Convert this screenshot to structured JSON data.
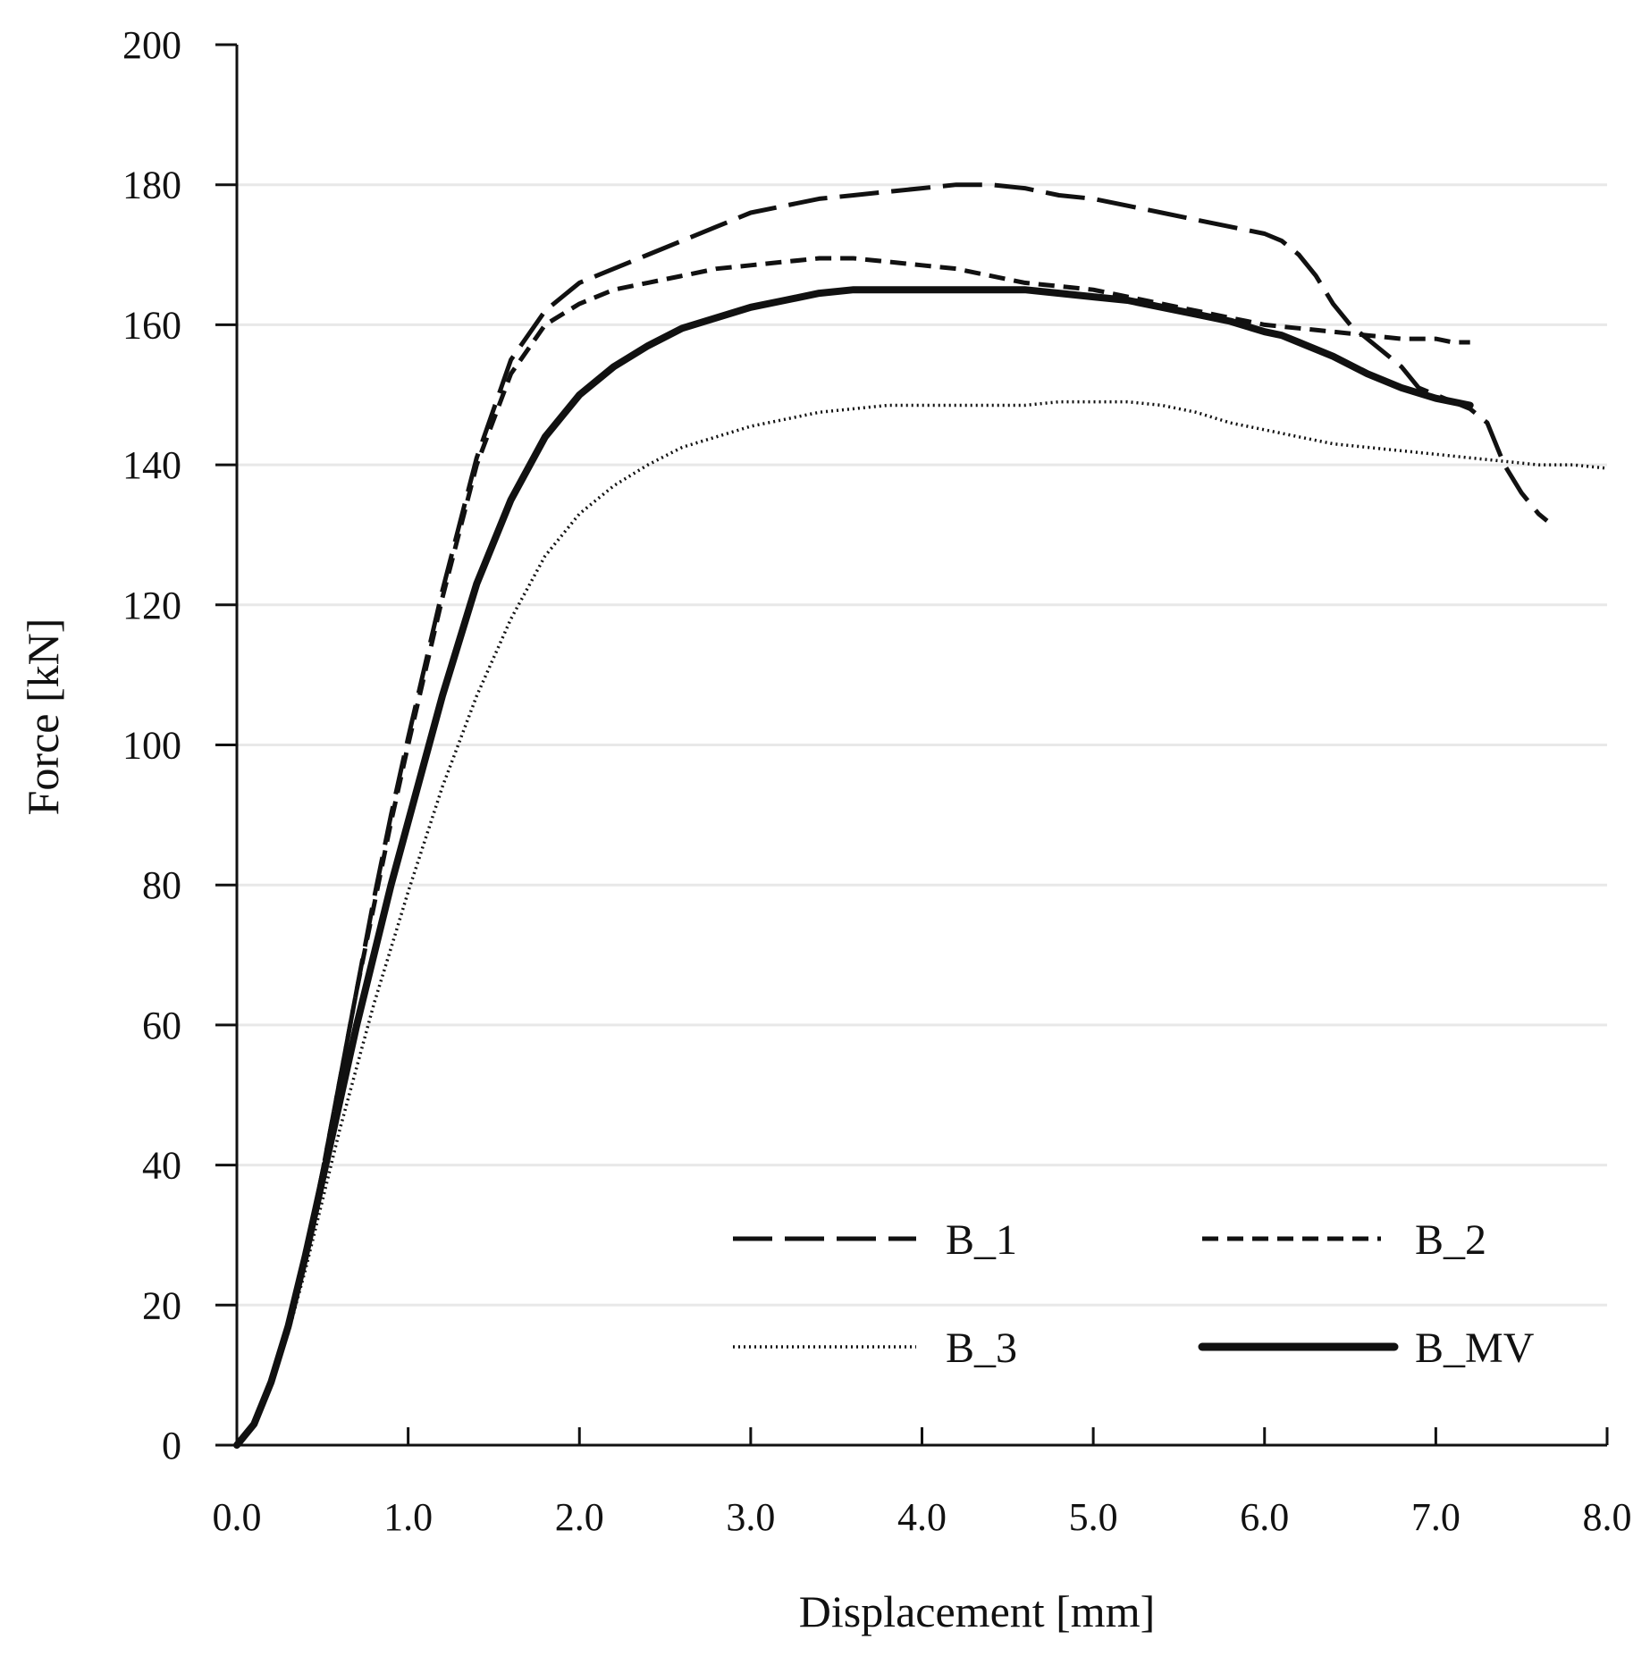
{
  "chart_data": {
    "type": "line",
    "title": "",
    "xlabel": "Displacement [mm]",
    "ylabel": "Force [kN]",
    "xlim": [
      0,
      8
    ],
    "ylim": [
      0,
      200
    ],
    "x_ticks": [
      0,
      1,
      2,
      3,
      4,
      5,
      6,
      7,
      8
    ],
    "x_tick_labels": [
      "0.0",
      "1.0",
      "2.0",
      "3.0",
      "4.0",
      "5.0",
      "6.0",
      "7.0",
      "8.0"
    ],
    "y_ticks": [
      0,
      20,
      40,
      60,
      80,
      100,
      120,
      140,
      160,
      180,
      200
    ],
    "y_tick_labels": [
      "0",
      "20",
      "40",
      "60",
      "80",
      "100",
      "120",
      "140",
      "160",
      "180",
      "200"
    ],
    "grid": "horizontal",
    "legend_position": "bottom-right",
    "series": [
      {
        "name": "B_1",
        "style": "long-dash",
        "color": "#111111",
        "x": [
          0,
          0.1,
          0.2,
          0.3,
          0.4,
          0.5,
          0.6,
          0.7,
          0.8,
          0.9,
          1.0,
          1.2,
          1.4,
          1.6,
          1.8,
          2.0,
          2.2,
          2.4,
          2.6,
          2.8,
          3.0,
          3.2,
          3.4,
          3.6,
          3.8,
          4.0,
          4.2,
          4.4,
          4.6,
          4.8,
          5.0,
          5.2,
          5.4,
          5.6,
          5.8,
          6.0,
          6.1,
          6.2,
          6.3,
          6.4,
          6.5,
          6.6,
          6.7,
          6.8,
          6.9,
          7.0,
          7.1,
          7.2,
          7.3,
          7.4,
          7.5,
          7.6,
          7.65
        ],
        "y": [
          0,
          3,
          9,
          17,
          27,
          39,
          52,
          65,
          78,
          90,
          101,
          122,
          141,
          155,
          162,
          166,
          168,
          170,
          172,
          174,
          176,
          177,
          178,
          178.5,
          179,
          179.5,
          180,
          180,
          179.5,
          178.5,
          178,
          177,
          176,
          175,
          174,
          173,
          172,
          170,
          167,
          163,
          160,
          158,
          156,
          154,
          151,
          150,
          149,
          148,
          146,
          140,
          136,
          133,
          132
        ]
      },
      {
        "name": "B_2",
        "style": "short-dash",
        "color": "#111111",
        "x": [
          0,
          0.1,
          0.2,
          0.3,
          0.4,
          0.5,
          0.6,
          0.7,
          0.8,
          0.9,
          1.0,
          1.2,
          1.4,
          1.6,
          1.8,
          2.0,
          2.2,
          2.4,
          2.6,
          2.8,
          3.0,
          3.2,
          3.4,
          3.6,
          3.8,
          4.0,
          4.2,
          4.4,
          4.6,
          4.8,
          5.0,
          5.2,
          5.4,
          5.6,
          5.8,
          6.0,
          6.2,
          6.4,
          6.6,
          6.8,
          7.0,
          7.1,
          7.2
        ],
        "y": [
          0,
          3,
          9,
          17,
          27,
          39,
          52,
          65,
          77,
          89,
          100,
          121,
          140,
          153,
          160,
          163,
          165,
          166,
          167,
          168,
          168.5,
          169,
          169.5,
          169.5,
          169,
          168.5,
          168,
          167,
          166,
          165.5,
          165,
          164,
          163,
          162,
          161,
          160,
          159.5,
          159,
          158.5,
          158,
          158,
          157.5,
          157.5
        ]
      },
      {
        "name": "B_3",
        "style": "dotted",
        "color": "#111111",
        "x": [
          0,
          0.1,
          0.2,
          0.3,
          0.4,
          0.5,
          0.6,
          0.7,
          0.8,
          0.9,
          1.0,
          1.2,
          1.4,
          1.6,
          1.8,
          2.0,
          2.2,
          2.4,
          2.6,
          2.8,
          3.0,
          3.2,
          3.4,
          3.6,
          3.8,
          4.0,
          4.2,
          4.4,
          4.6,
          4.8,
          5.0,
          5.2,
          5.4,
          5.6,
          5.8,
          6.0,
          6.2,
          6.4,
          6.6,
          6.8,
          7.0,
          7.2,
          7.4,
          7.6,
          7.8,
          8.0
        ],
        "y": [
          0,
          3,
          9,
          16,
          25,
          35,
          45,
          54,
          63,
          71,
          79,
          94,
          107,
          118,
          127,
          133,
          137,
          140,
          142.5,
          144,
          145.5,
          146.5,
          147.5,
          148,
          148.5,
          148.5,
          148.5,
          148.5,
          148.5,
          149,
          149,
          149,
          148.5,
          147.5,
          146,
          145,
          144,
          143,
          142.5,
          142,
          141.5,
          141,
          140.5,
          140,
          140,
          139.5
        ]
      },
      {
        "name": "B_MV",
        "style": "solid-thick",
        "color": "#111111",
        "x": [
          0,
          0.1,
          0.2,
          0.3,
          0.4,
          0.5,
          0.6,
          0.7,
          0.8,
          0.9,
          1.0,
          1.2,
          1.4,
          1.6,
          1.8,
          2.0,
          2.2,
          2.4,
          2.6,
          2.8,
          3.0,
          3.2,
          3.4,
          3.6,
          3.8,
          4.0,
          4.2,
          4.4,
          4.6,
          4.8,
          5.0,
          5.2,
          5.4,
          5.6,
          5.8,
          6.0,
          6.1,
          6.2,
          6.4,
          6.6,
          6.8,
          7.0,
          7.2
        ],
        "y": [
          0,
          3,
          9,
          17,
          27,
          38,
          49,
          60,
          70,
          80,
          89,
          107,
          123,
          135,
          144,
          150,
          154,
          157,
          159.5,
          161,
          162.5,
          163.5,
          164.5,
          165,
          165,
          165,
          165,
          165,
          165,
          164.5,
          164,
          163.5,
          162.5,
          161.5,
          160.5,
          159,
          158.5,
          157.5,
          155.5,
          153,
          151,
          149.5,
          148.5
        ]
      }
    ]
  }
}
